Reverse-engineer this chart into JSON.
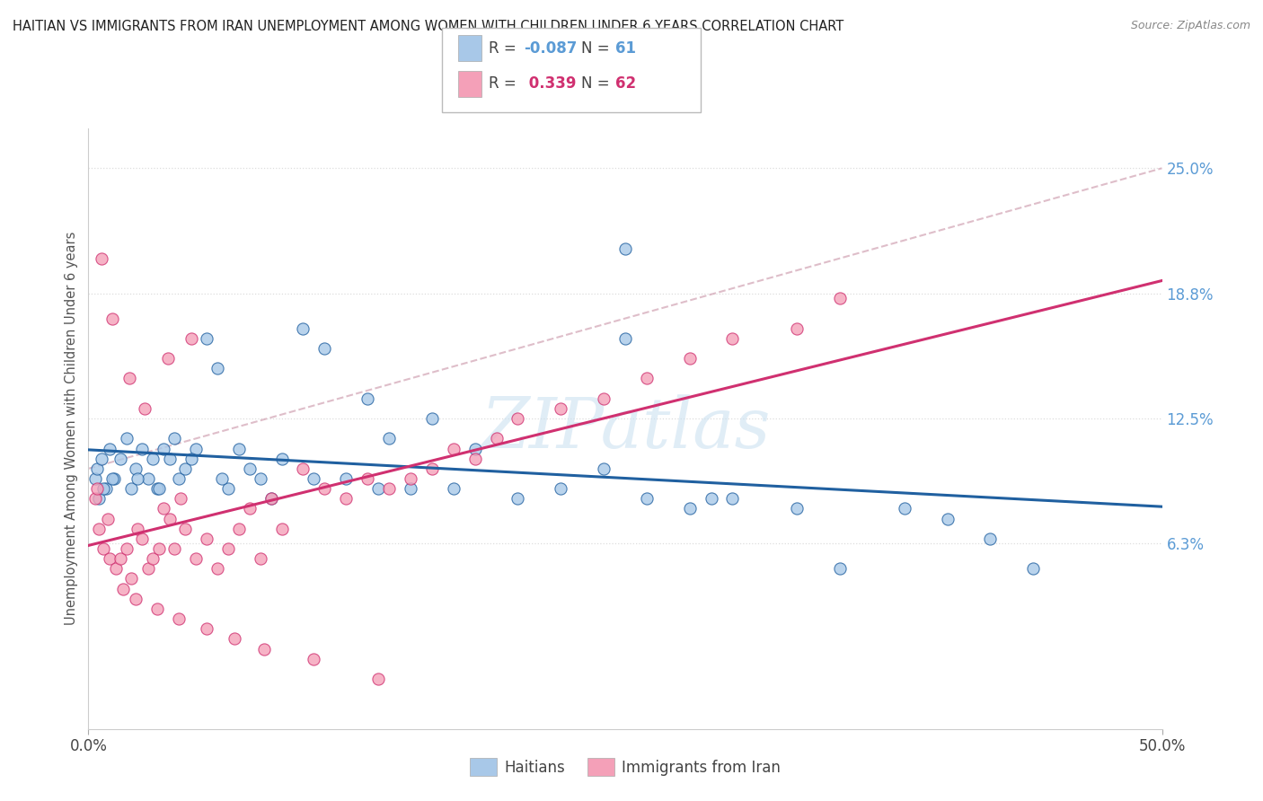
{
  "title": "HAITIAN VS IMMIGRANTS FROM IRAN UNEMPLOYMENT AMONG WOMEN WITH CHILDREN UNDER 6 YEARS CORRELATION CHART",
  "source": "Source: ZipAtlas.com",
  "ylabel": "Unemployment Among Women with Children Under 6 years",
  "xlim": [
    0.0,
    50.0
  ],
  "ylim": [
    -3.0,
    27.0
  ],
  "color_blue": "#a8c8e8",
  "color_pink": "#f4a0b8",
  "color_blue_line": "#2060a0",
  "color_pink_line": "#d03070",
  "color_dashed": "#d4a8b8",
  "haitian_x": [
    0.3,
    0.4,
    0.5,
    0.6,
    0.8,
    1.0,
    1.2,
    1.5,
    1.8,
    2.0,
    2.2,
    2.5,
    2.8,
    3.0,
    3.2,
    3.5,
    3.8,
    4.0,
    4.2,
    4.5,
    5.0,
    5.5,
    6.0,
    6.5,
    7.0,
    7.5,
    8.0,
    9.0,
    10.0,
    11.0,
    12.0,
    13.0,
    14.0,
    15.0,
    16.0,
    17.0,
    18.0,
    20.0,
    22.0,
    24.0,
    25.0,
    26.0,
    28.0,
    30.0,
    33.0,
    35.0,
    38.0,
    40.0,
    42.0,
    44.0,
    25.0,
    29.0,
    0.7,
    1.1,
    2.3,
    3.3,
    4.8,
    6.2,
    8.5,
    10.5,
    13.5
  ],
  "haitian_y": [
    9.5,
    10.0,
    8.5,
    10.5,
    9.0,
    11.0,
    9.5,
    10.5,
    11.5,
    9.0,
    10.0,
    11.0,
    9.5,
    10.5,
    9.0,
    11.0,
    10.5,
    11.5,
    9.5,
    10.0,
    11.0,
    16.5,
    15.0,
    9.0,
    11.0,
    10.0,
    9.5,
    10.5,
    17.0,
    16.0,
    9.5,
    13.5,
    11.5,
    9.0,
    12.5,
    9.0,
    11.0,
    8.5,
    9.0,
    10.0,
    16.5,
    8.5,
    8.0,
    8.5,
    8.0,
    5.0,
    8.0,
    7.5,
    6.5,
    5.0,
    21.0,
    8.5,
    9.0,
    9.5,
    9.5,
    9.0,
    10.5,
    9.5,
    8.5,
    9.5,
    9.0
  ],
  "iran_x": [
    0.3,
    0.5,
    0.7,
    1.0,
    1.3,
    1.5,
    1.8,
    2.0,
    2.3,
    2.5,
    2.8,
    3.0,
    3.3,
    3.5,
    3.8,
    4.0,
    4.3,
    4.5,
    5.0,
    5.5,
    6.0,
    6.5,
    7.0,
    7.5,
    8.0,
    8.5,
    9.0,
    10.0,
    11.0,
    12.0,
    13.0,
    14.0,
    15.0,
    16.0,
    17.0,
    18.0,
    19.0,
    20.0,
    22.0,
    24.0,
    26.0,
    28.0,
    30.0,
    33.0,
    35.0,
    0.4,
    0.9,
    1.6,
    2.2,
    3.2,
    4.2,
    5.5,
    6.8,
    8.2,
    10.5,
    13.5,
    0.6,
    1.1,
    1.9,
    2.6,
    3.7,
    4.8
  ],
  "iran_y": [
    8.5,
    7.0,
    6.0,
    5.5,
    5.0,
    5.5,
    6.0,
    4.5,
    7.0,
    6.5,
    5.0,
    5.5,
    6.0,
    8.0,
    7.5,
    6.0,
    8.5,
    7.0,
    5.5,
    6.5,
    5.0,
    6.0,
    7.0,
    8.0,
    5.5,
    8.5,
    7.0,
    10.0,
    9.0,
    8.5,
    9.5,
    9.0,
    9.5,
    10.0,
    11.0,
    10.5,
    11.5,
    12.5,
    13.0,
    13.5,
    14.5,
    15.5,
    16.5,
    17.0,
    18.5,
    9.0,
    7.5,
    4.0,
    3.5,
    3.0,
    2.5,
    2.0,
    1.5,
    1.0,
    0.5,
    -0.5,
    20.5,
    17.5,
    14.5,
    13.0,
    15.5,
    16.5
  ]
}
